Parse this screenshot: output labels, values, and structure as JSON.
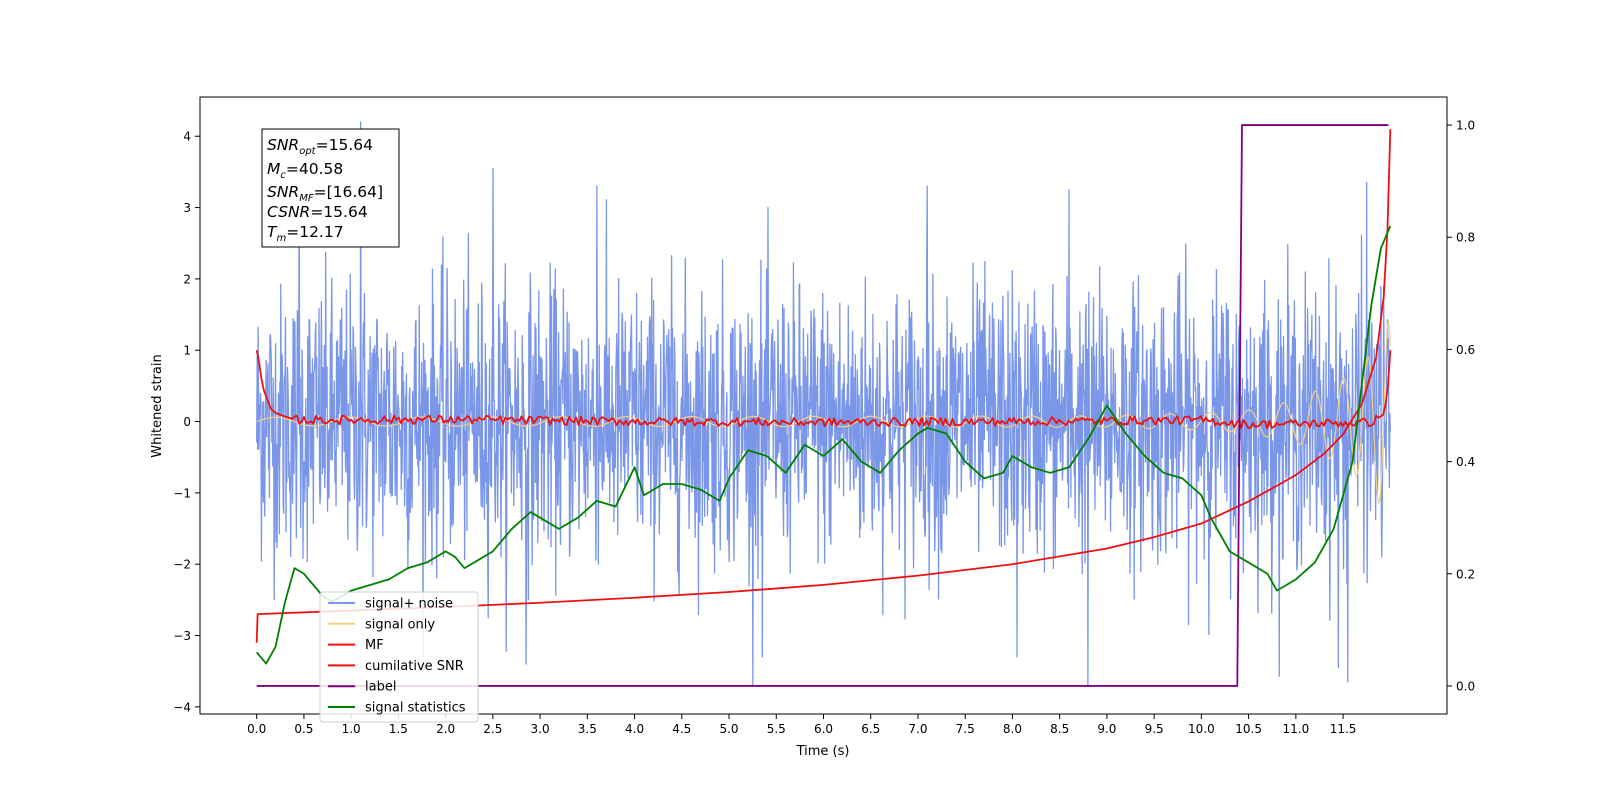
{
  "chart_data": {
    "type": "line",
    "xlabel": "Time (s)",
    "ylabel": "Whitened strain",
    "xlim": [
      -0.6,
      12.6
    ],
    "ylim_left": [
      -4.1,
      4.55
    ],
    "ylim_right": [
      -0.05,
      1.05
    ],
    "x_ticks": [
      0.0,
      0.5,
      1.0,
      1.5,
      2.0,
      2.5,
      3.0,
      3.5,
      4.0,
      4.5,
      5.0,
      5.5,
      6.0,
      6.5,
      7.0,
      7.5,
      8.0,
      8.5,
      9.0,
      9.5,
      10.0,
      10.5,
      11.0,
      11.5
    ],
    "x_tick_labels": [
      "0.0",
      "0.5",
      "1.0",
      "1.5",
      "2.0",
      "2.5",
      "3.0",
      "3.5",
      "4.0",
      "4.5",
      "5.0",
      "5.5",
      "6.0",
      "6.5",
      "7.0",
      "7.5",
      "8.0",
      "8.5",
      "9.0",
      "9.5",
      "10.0",
      "10.5",
      "11.0",
      "11.5"
    ],
    "y_ticks_left": [
      -4,
      -3,
      -2,
      -1,
      0,
      1,
      2,
      3,
      4
    ],
    "y_tick_labels_left": [
      "−4",
      "−3",
      "−2",
      "−1",
      "0",
      "1",
      "2",
      "3",
      "4"
    ],
    "y_ticks_right": [
      0.0,
      0.2,
      0.4,
      0.6,
      0.8,
      1.0
    ],
    "y_tick_labels_right": [
      "0.0",
      "0.2",
      "0.4",
      "0.6",
      "0.8",
      "1.0"
    ],
    "grid": false,
    "legend_position": "lower-left",
    "stats_box": [
      {
        "base": "SNR",
        "sub": "opt",
        "value": "=15.64"
      },
      {
        "base": "M",
        "sub": "c",
        "value": "=40.58"
      },
      {
        "base": "SNR",
        "sub": "MF",
        "value": "=[16.64]"
      },
      {
        "base": "CSNR",
        "sub": "",
        "value": "=15.64"
      },
      {
        "base": "T",
        "sub": "m",
        "value": "=12.17"
      }
    ],
    "series": [
      {
        "name": "signal+ noise",
        "color": "#7a96e8",
        "axis": "left",
        "kind": "noisy",
        "envelope": {
          "t_start": 0.0,
          "t_end": 12.0,
          "typical_range": [
            -1.4,
            1.4
          ],
          "max": 4.2,
          "min": -3.7
        },
        "peaks": [
          {
            "x": 1.1,
            "y": 4.2
          },
          {
            "x": 0.45,
            "y": 3.5
          },
          {
            "x": 2.5,
            "y": 3.55
          },
          {
            "x": 3.6,
            "y": 3.3
          },
          {
            "x": 7.1,
            "y": 3.3
          },
          {
            "x": 8.6,
            "y": 3.25
          },
          {
            "x": 11.75,
            "y": 3.35
          },
          {
            "x": 8.8,
            "y": -3.7
          },
          {
            "x": 11.55,
            "y": -3.65
          },
          {
            "x": 2.85,
            "y": -3.4
          },
          {
            "x": 5.35,
            "y": -3.3
          },
          {
            "x": 8.05,
            "y": -3.3
          },
          {
            "x": 11.45,
            "y": -3.45
          }
        ]
      },
      {
        "name": "signal only",
        "color": "#f5cf85",
        "axis": "left",
        "kind": "chirp",
        "amplitude": [
          [
            0.0,
            0.06
          ],
          [
            9.0,
            0.08
          ],
          [
            10.0,
            0.12
          ],
          [
            10.5,
            0.16
          ],
          [
            11.0,
            0.3
          ],
          [
            11.5,
            0.6
          ],
          [
            11.8,
            0.95
          ],
          [
            12.0,
            1.45
          ]
        ]
      },
      {
        "name": "MF",
        "color": "#ee1111",
        "axis": "left",
        "kind": "line",
        "points": [
          [
            0.0,
            1.0
          ],
          [
            0.03,
            0.8
          ],
          [
            0.06,
            0.5
          ],
          [
            0.1,
            0.35
          ],
          [
            0.15,
            0.18
          ],
          [
            0.2,
            0.12
          ],
          [
            0.3,
            0.07
          ],
          [
            0.4,
            0.03
          ],
          [
            0.5,
            0.02
          ],
          [
            2.0,
            0.03
          ],
          [
            4.0,
            0.0
          ],
          [
            6.0,
            -0.01
          ],
          [
            8.0,
            0.0
          ],
          [
            10.0,
            0.02
          ],
          [
            10.5,
            -0.04
          ],
          [
            11.0,
            -0.03
          ],
          [
            11.5,
            -0.02
          ],
          [
            11.8,
            -0.01
          ],
          [
            11.93,
            0.1
          ],
          [
            11.97,
            0.4
          ],
          [
            12.0,
            1.0
          ]
        ],
        "ripple": 0.06
      },
      {
        "name": "cumilative SNR",
        "color": "#ee1111",
        "axis": "left",
        "kind": "line",
        "points": [
          [
            0.0,
            -3.1
          ],
          [
            0.01,
            -2.7
          ],
          [
            1.0,
            -2.65
          ],
          [
            2.0,
            -2.6
          ],
          [
            3.0,
            -2.54
          ],
          [
            4.0,
            -2.47
          ],
          [
            5.0,
            -2.39
          ],
          [
            6.0,
            -2.29
          ],
          [
            7.0,
            -2.16
          ],
          [
            8.0,
            -2.0
          ],
          [
            9.0,
            -1.78
          ],
          [
            9.5,
            -1.62
          ],
          [
            10.0,
            -1.43
          ],
          [
            10.5,
            -1.12
          ],
          [
            11.0,
            -0.75
          ],
          [
            11.3,
            -0.45
          ],
          [
            11.5,
            -0.18
          ],
          [
            11.7,
            0.25
          ],
          [
            11.85,
            0.9
          ],
          [
            11.93,
            1.75
          ],
          [
            11.97,
            2.7
          ],
          [
            12.0,
            4.1
          ]
        ]
      },
      {
        "name": "label",
        "color": "#800080",
        "axis": "right",
        "kind": "line",
        "points": [
          [
            0.0,
            0.0
          ],
          [
            10.38,
            0.0
          ],
          [
            10.43,
            1.0
          ],
          [
            11.98,
            1.0
          ]
        ]
      },
      {
        "name": "signal statistics",
        "color": "#008000",
        "axis": "right",
        "kind": "line",
        "points": [
          [
            0.0,
            0.06
          ],
          [
            0.1,
            0.04
          ],
          [
            0.2,
            0.07
          ],
          [
            0.3,
            0.15
          ],
          [
            0.4,
            0.21
          ],
          [
            0.5,
            0.2
          ],
          [
            0.6,
            0.18
          ],
          [
            0.7,
            0.16
          ],
          [
            0.8,
            0.15
          ],
          [
            0.9,
            0.16
          ],
          [
            1.0,
            0.17
          ],
          [
            1.2,
            0.18
          ],
          [
            1.4,
            0.19
          ],
          [
            1.6,
            0.21
          ],
          [
            1.8,
            0.22
          ],
          [
            2.0,
            0.24
          ],
          [
            2.1,
            0.23
          ],
          [
            2.2,
            0.21
          ],
          [
            2.3,
            0.22
          ],
          [
            2.5,
            0.24
          ],
          [
            2.7,
            0.28
          ],
          [
            2.9,
            0.31
          ],
          [
            3.0,
            0.3
          ],
          [
            3.2,
            0.28
          ],
          [
            3.4,
            0.3
          ],
          [
            3.6,
            0.33
          ],
          [
            3.8,
            0.32
          ],
          [
            4.0,
            0.39
          ],
          [
            4.1,
            0.34
          ],
          [
            4.3,
            0.36
          ],
          [
            4.5,
            0.36
          ],
          [
            4.7,
            0.35
          ],
          [
            4.9,
            0.33
          ],
          [
            5.0,
            0.37
          ],
          [
            5.2,
            0.42
          ],
          [
            5.4,
            0.41
          ],
          [
            5.6,
            0.38
          ],
          [
            5.8,
            0.43
          ],
          [
            6.0,
            0.41
          ],
          [
            6.2,
            0.44
          ],
          [
            6.4,
            0.4
          ],
          [
            6.6,
            0.38
          ],
          [
            6.8,
            0.42
          ],
          [
            7.0,
            0.45
          ],
          [
            7.1,
            0.46
          ],
          [
            7.3,
            0.45
          ],
          [
            7.5,
            0.4
          ],
          [
            7.7,
            0.37
          ],
          [
            7.9,
            0.38
          ],
          [
            8.0,
            0.41
          ],
          [
            8.2,
            0.39
          ],
          [
            8.4,
            0.38
          ],
          [
            8.6,
            0.39
          ],
          [
            8.8,
            0.44
          ],
          [
            9.0,
            0.5
          ],
          [
            9.2,
            0.45
          ],
          [
            9.4,
            0.41
          ],
          [
            9.6,
            0.38
          ],
          [
            9.8,
            0.37
          ],
          [
            10.0,
            0.34
          ],
          [
            10.1,
            0.3
          ],
          [
            10.3,
            0.24
          ],
          [
            10.5,
            0.22
          ],
          [
            10.7,
            0.2
          ],
          [
            10.8,
            0.17
          ],
          [
            11.0,
            0.19
          ],
          [
            11.2,
            0.22
          ],
          [
            11.4,
            0.28
          ],
          [
            11.6,
            0.4
          ],
          [
            11.8,
            0.68
          ],
          [
            11.9,
            0.78
          ],
          [
            12.0,
            0.82
          ]
        ]
      }
    ]
  }
}
